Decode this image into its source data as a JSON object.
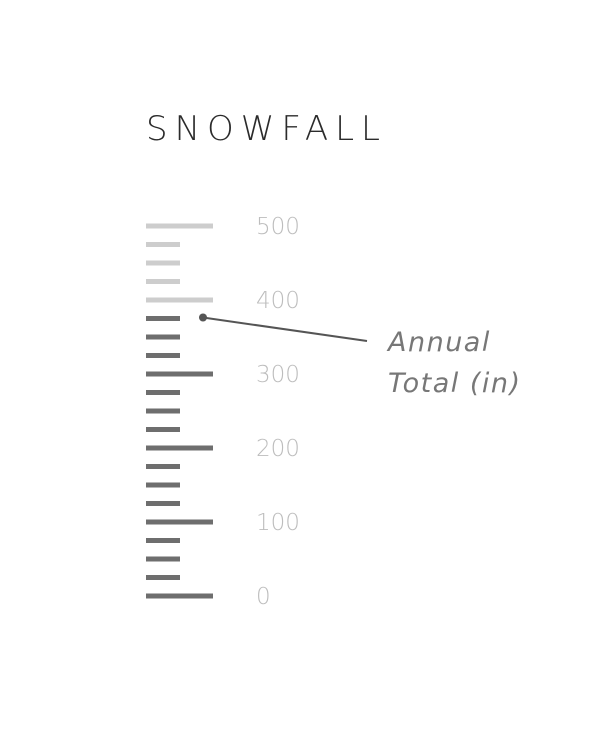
{
  "chart_data": {
    "type": "gauge",
    "title": "SNOWFALL",
    "annotation": {
      "label_lines": [
        "Annual",
        "Total (in)"
      ],
      "value": 375
    },
    "scale": {
      "min": 0,
      "max": 500,
      "minor_step": 25,
      "major_step": 100,
      "tick_labels": [
        "0",
        "100",
        "200",
        "300",
        "400",
        "500"
      ]
    },
    "value": 375
  },
  "colors": {
    "filled": "#6e6e6e",
    "unfilled": "#cdcdcd",
    "label": "#bdbdbd",
    "title": "#2b2b2b",
    "annotation": "#777777",
    "leader": "#555555"
  }
}
